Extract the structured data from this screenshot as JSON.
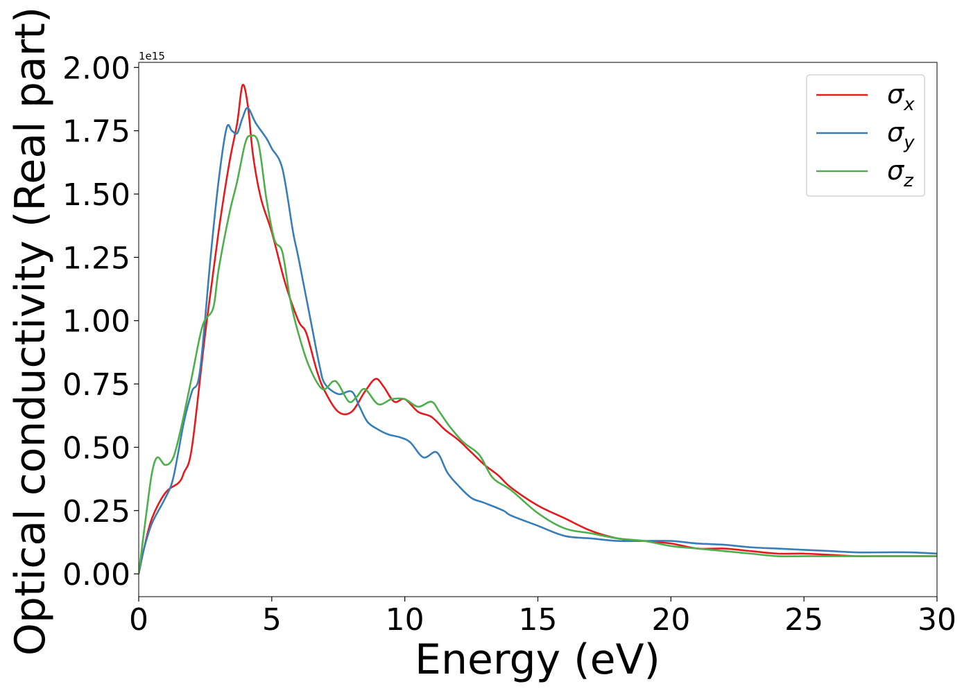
{
  "chart_data": {
    "type": "line",
    "xlabel": "Energy (eV)",
    "ylabel": "Optical conductivity (Real part)",
    "offset_label": "1e15",
    "xlim": [
      0,
      30
    ],
    "ylim": [
      -0.09,
      2.02
    ],
    "y_multiplier": 1000000000000000.0,
    "xticks": [
      0,
      5,
      10,
      15,
      20,
      25,
      30
    ],
    "xtick_labels": [
      "0",
      "5",
      "10",
      "15",
      "20",
      "25",
      "30"
    ],
    "yticks": [
      0.0,
      0.25,
      0.5,
      0.75,
      1.0,
      1.25,
      1.5,
      1.75,
      2.0
    ],
    "ytick_labels": [
      "0.00",
      "0.25",
      "0.50",
      "0.75",
      "1.00",
      "1.25",
      "1.50",
      "1.75",
      "2.00"
    ],
    "legend_position": "top-right",
    "grid": false,
    "series": [
      {
        "name": "σx",
        "symbol": "σ",
        "subscript": "x",
        "color": "#e41a1c",
        "points": [
          [
            0,
            0
          ],
          [
            0.2,
            0.1
          ],
          [
            0.5,
            0.22
          ],
          [
            1,
            0.32
          ],
          [
            1.5,
            0.36
          ],
          [
            1.7,
            0.4
          ],
          [
            2,
            0.5
          ],
          [
            2.5,
            0.95
          ],
          [
            3,
            1.35
          ],
          [
            3.4,
            1.62
          ],
          [
            3.7,
            1.78
          ],
          [
            3.9,
            1.93
          ],
          [
            4.1,
            1.85
          ],
          [
            4.3,
            1.65
          ],
          [
            4.6,
            1.48
          ],
          [
            5,
            1.35
          ],
          [
            5.5,
            1.15
          ],
          [
            6,
            1.0
          ],
          [
            6.3,
            0.95
          ],
          [
            6.7,
            0.8
          ],
          [
            7,
            0.72
          ],
          [
            7.5,
            0.64
          ],
          [
            8,
            0.64
          ],
          [
            8.5,
            0.72
          ],
          [
            8.9,
            0.77
          ],
          [
            9.2,
            0.74
          ],
          [
            9.6,
            0.68
          ],
          [
            10,
            0.69
          ],
          [
            10.5,
            0.64
          ],
          [
            11,
            0.62
          ],
          [
            11.5,
            0.57
          ],
          [
            12,
            0.53
          ],
          [
            12.5,
            0.48
          ],
          [
            13,
            0.43
          ],
          [
            13.5,
            0.39
          ],
          [
            14,
            0.34
          ],
          [
            15,
            0.27
          ],
          [
            16,
            0.22
          ],
          [
            17,
            0.17
          ],
          [
            18,
            0.14
          ],
          [
            19,
            0.13
          ],
          [
            20,
            0.12
          ],
          [
            21,
            0.1
          ],
          [
            22,
            0.1
          ],
          [
            23,
            0.09
          ],
          [
            24,
            0.08
          ],
          [
            25,
            0.08
          ],
          [
            26,
            0.075
          ],
          [
            27,
            0.07
          ],
          [
            28,
            0.07
          ],
          [
            29,
            0.07
          ],
          [
            30,
            0.07
          ]
        ]
      },
      {
        "name": "σy",
        "symbol": "σ",
        "subscript": "y",
        "color": "#377eb8",
        "points": [
          [
            0,
            0
          ],
          [
            0.2,
            0.1
          ],
          [
            0.5,
            0.2
          ],
          [
            1,
            0.3
          ],
          [
            1.3,
            0.38
          ],
          [
            1.7,
            0.6
          ],
          [
            2,
            0.72
          ],
          [
            2.3,
            0.8
          ],
          [
            2.7,
            1.25
          ],
          [
            3,
            1.55
          ],
          [
            3.3,
            1.76
          ],
          [
            3.5,
            1.75
          ],
          [
            3.7,
            1.74
          ],
          [
            3.9,
            1.8
          ],
          [
            4.1,
            1.84
          ],
          [
            4.4,
            1.78
          ],
          [
            4.8,
            1.72
          ],
          [
            5,
            1.68
          ],
          [
            5.4,
            1.6
          ],
          [
            5.8,
            1.35
          ],
          [
            6,
            1.25
          ],
          [
            6.5,
            0.98
          ],
          [
            6.8,
            0.82
          ],
          [
            7,
            0.75
          ],
          [
            7.5,
            0.71
          ],
          [
            8,
            0.72
          ],
          [
            8.3,
            0.66
          ],
          [
            8.6,
            0.6
          ],
          [
            9,
            0.57
          ],
          [
            9.4,
            0.55
          ],
          [
            9.8,
            0.54
          ],
          [
            10.2,
            0.52
          ],
          [
            10.7,
            0.46
          ],
          [
            11.2,
            0.48
          ],
          [
            11.6,
            0.4
          ],
          [
            12,
            0.35
          ],
          [
            12.5,
            0.3
          ],
          [
            13,
            0.28
          ],
          [
            13.7,
            0.25
          ],
          [
            14,
            0.23
          ],
          [
            15,
            0.19
          ],
          [
            16,
            0.15
          ],
          [
            17,
            0.14
          ],
          [
            18,
            0.13
          ],
          [
            19,
            0.13
          ],
          [
            20,
            0.13
          ],
          [
            21,
            0.12
          ],
          [
            22,
            0.115
          ],
          [
            23,
            0.105
          ],
          [
            24,
            0.1
          ],
          [
            25,
            0.095
          ],
          [
            26,
            0.09
          ],
          [
            27,
            0.085
          ],
          [
            28,
            0.085
          ],
          [
            29,
            0.085
          ],
          [
            30,
            0.08
          ]
        ]
      },
      {
        "name": "σz",
        "symbol": "σ",
        "subscript": "z",
        "color": "#4daf4a",
        "points": [
          [
            0,
            0
          ],
          [
            0.3,
            0.25
          ],
          [
            0.5,
            0.4
          ],
          [
            0.7,
            0.46
          ],
          [
            1,
            0.43
          ],
          [
            1.3,
            0.46
          ],
          [
            1.6,
            0.58
          ],
          [
            2,
            0.78
          ],
          [
            2.4,
            0.98
          ],
          [
            2.8,
            1.05
          ],
          [
            3,
            1.2
          ],
          [
            3.4,
            1.42
          ],
          [
            3.7,
            1.55
          ],
          [
            4,
            1.7
          ],
          [
            4.2,
            1.73
          ],
          [
            4.5,
            1.7
          ],
          [
            4.8,
            1.48
          ],
          [
            5.1,
            1.32
          ],
          [
            5.4,
            1.27
          ],
          [
            5.7,
            1.08
          ],
          [
            6,
            0.95
          ],
          [
            6.4,
            0.82
          ],
          [
            6.9,
            0.73
          ],
          [
            7.3,
            0.76
          ],
          [
            7.5,
            0.75
          ],
          [
            7.9,
            0.68
          ],
          [
            8.2,
            0.7
          ],
          [
            8.5,
            0.73
          ],
          [
            9,
            0.67
          ],
          [
            9.5,
            0.69
          ],
          [
            10,
            0.69
          ],
          [
            10.5,
            0.66
          ],
          [
            11,
            0.68
          ],
          [
            11.3,
            0.64
          ],
          [
            11.7,
            0.58
          ],
          [
            12.2,
            0.52
          ],
          [
            12.8,
            0.47
          ],
          [
            13.3,
            0.38
          ],
          [
            14,
            0.33
          ],
          [
            15,
            0.24
          ],
          [
            16,
            0.18
          ],
          [
            17,
            0.16
          ],
          [
            18,
            0.14
          ],
          [
            19,
            0.13
          ],
          [
            20,
            0.11
          ],
          [
            21,
            0.1
          ],
          [
            22,
            0.09
          ],
          [
            23,
            0.08
          ],
          [
            24,
            0.07
          ],
          [
            25,
            0.07
          ],
          [
            26,
            0.07
          ],
          [
            27,
            0.07
          ],
          [
            28,
            0.07
          ],
          [
            29,
            0.07
          ],
          [
            30,
            0.07
          ]
        ]
      }
    ]
  }
}
